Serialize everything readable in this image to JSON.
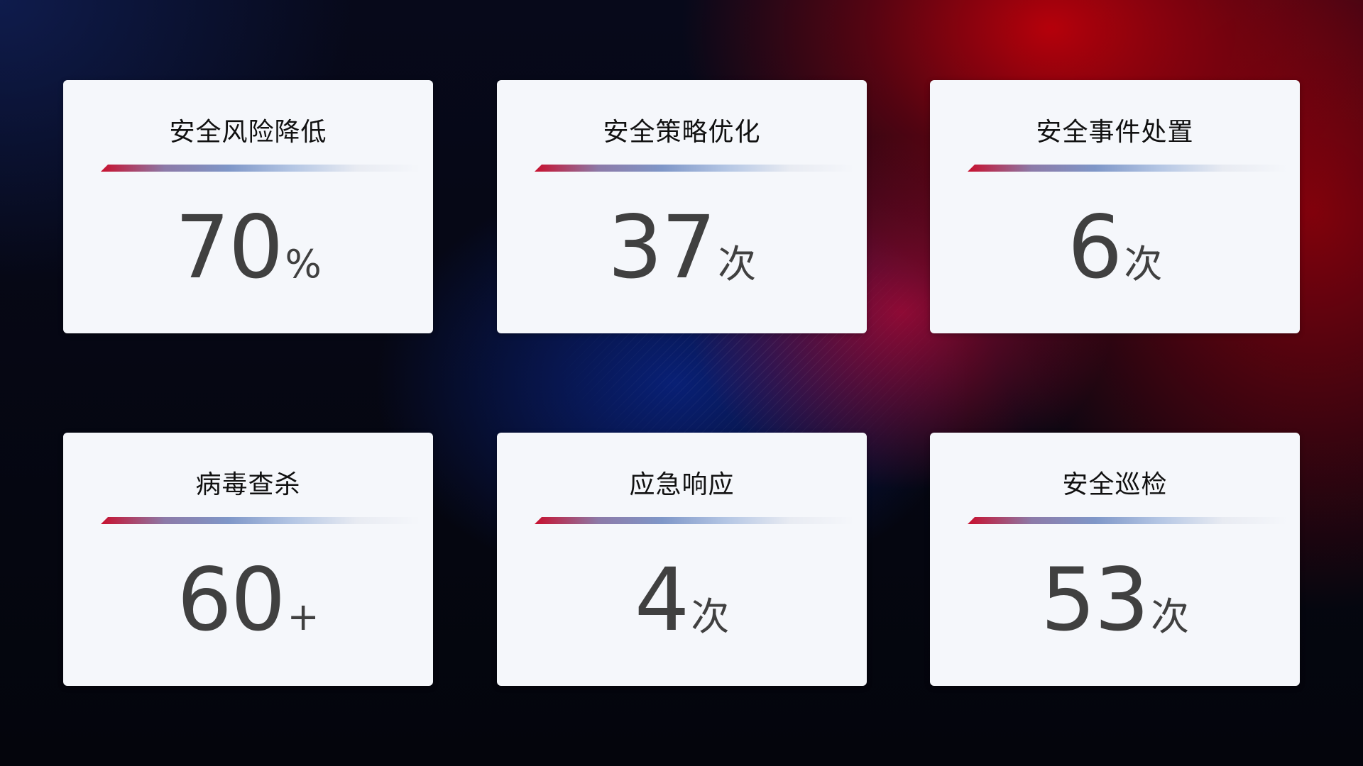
{
  "theme": {
    "bar_gradient": [
      "#c8102e",
      "#8c7aa8",
      "#7f97c8",
      "#b4c6e4",
      "#e8ebf2"
    ],
    "value_color": "#404040",
    "card_bg": "#f5f7fb"
  },
  "cards": [
    {
      "title": "安全风险降低",
      "value": "70",
      "unit": "%"
    },
    {
      "title": "安全策略优化",
      "value": "37",
      "unit": "次"
    },
    {
      "title": "安全事件处置",
      "value": "6",
      "unit": "次"
    },
    {
      "title": "病毒查杀",
      "value": "60",
      "unit": "+"
    },
    {
      "title": "应急响应",
      "value": "4",
      "unit": "次"
    },
    {
      "title": "安全巡检",
      "value": "53",
      "unit": "次"
    }
  ]
}
